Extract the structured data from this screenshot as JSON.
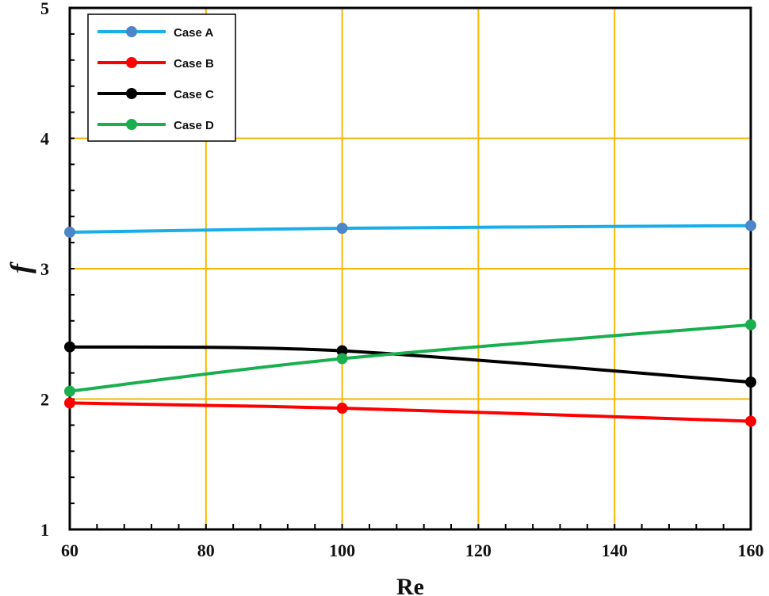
{
  "chart_data": {
    "type": "line",
    "title": "",
    "xlabel": "Re",
    "ylabel": "f",
    "xlim": [
      60,
      160
    ],
    "ylim": [
      1,
      5
    ],
    "xticks": [
      60,
      80,
      100,
      120,
      140,
      160
    ],
    "yticks": [
      1,
      2,
      3,
      4,
      5
    ],
    "x_tick_labels": [
      "60",
      "80",
      "100",
      "120",
      "140",
      "160"
    ],
    "y_tick_labels": [
      "1",
      "2",
      "3",
      "4",
      "5"
    ],
    "grid": true,
    "grid_color": "#f5b800",
    "legend_position": "top-left",
    "x": [
      60,
      100,
      160
    ],
    "series": [
      {
        "name": "Case A",
        "values": [
          3.28,
          3.31,
          3.33
        ],
        "color": "#1aaee8",
        "marker_color": "#4a86c8"
      },
      {
        "name": "Case B",
        "values": [
          1.97,
          1.93,
          1.83
        ],
        "color": "#ff0000",
        "marker_color": "#ff0000"
      },
      {
        "name": "Case C",
        "values": [
          2.4,
          2.37,
          2.13
        ],
        "color": "#000000",
        "marker_color": "#000000"
      },
      {
        "name": "Case D",
        "values": [
          2.06,
          2.31,
          2.57
        ],
        "color": "#1aaf4e",
        "marker_color": "#1aaf4e"
      }
    ]
  }
}
